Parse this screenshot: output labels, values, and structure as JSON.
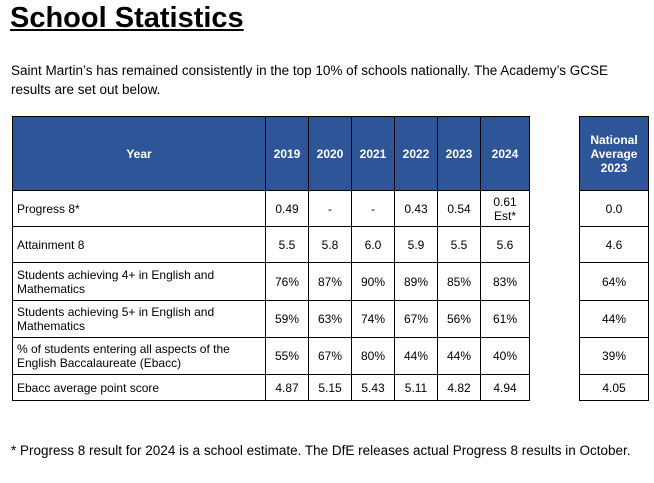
{
  "title": "School Statistics",
  "intro": "Saint Martin’s has remained consistently in the top 10% of schools nationally. The Academy’s GCSE results are set out below.",
  "table": {
    "header": [
      "Year",
      "2019",
      "2020",
      "2021",
      "2022",
      "2023",
      "2024"
    ],
    "rows": [
      [
        "Progress 8*",
        "0.49",
        "-",
        "-",
        "0.43",
        "0.54",
        "0.61 Est*"
      ],
      [
        "Attainment 8",
        "5.5",
        "5.8",
        "6.0",
        "5.9",
        "5.5",
        "5.6"
      ],
      [
        "Students achieving 4+ in English and Mathematics",
        "76%",
        "87%",
        "90%",
        "89%",
        "85%",
        "83%"
      ],
      [
        "Students achieving 5+ in English and Mathematics",
        "59%",
        "63%",
        "74%",
        "67%",
        "56%",
        "61%"
      ],
      [
        "% of students entering all aspects of the English Baccalaureate (Ebacc)",
        "55%",
        "67%",
        "80%",
        "44%",
        "44%",
        "40%"
      ],
      [
        "Ebacc average point score",
        "4.87",
        "5.15",
        "5.43",
        "5.11",
        "4.82",
        "4.94"
      ]
    ]
  },
  "national": {
    "header": "National Average 2023",
    "rows": [
      "0.0",
      "4.6",
      "64%",
      "44%",
      "39%",
      "4.05"
    ]
  },
  "footnote": "* Progress 8 result for 2024 is a school estimate. The DfE releases actual Progress 8 results in October."
}
